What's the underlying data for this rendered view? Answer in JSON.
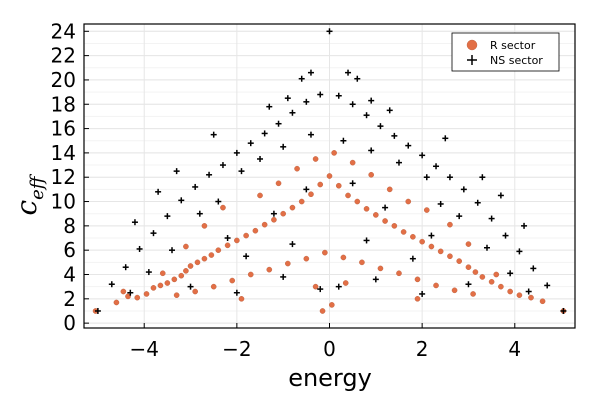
{
  "chart_data": {
    "type": "scatter",
    "xlabel": "energy",
    "ylabel": {
      "base": "c",
      "subscript": "eff"
    },
    "xlim": [
      -5.3,
      5.3
    ],
    "ylim": [
      -0.4,
      24.6
    ],
    "xticks": [
      -4,
      -2,
      0,
      2,
      4
    ],
    "xtick_labels": [
      "−4",
      "−2",
      "0",
      "2",
      "4"
    ],
    "yticks": [
      0,
      2,
      4,
      6,
      8,
      10,
      12,
      14,
      16,
      18,
      20,
      22,
      24
    ],
    "ytick_labels": [
      "0",
      "2",
      "4",
      "6",
      "8",
      "10",
      "12",
      "14",
      "16",
      "18",
      "20",
      "22",
      "24"
    ],
    "grid": true,
    "legend_position": "top-right",
    "series": [
      {
        "name": "R sector",
        "marker": "circle",
        "color": "#e26f46",
        "points": [
          [
            -5.05,
            1.0
          ],
          [
            -4.6,
            1.7
          ],
          [
            -4.35,
            2.2
          ],
          [
            -4.15,
            2.1
          ],
          [
            -4.45,
            2.6
          ],
          [
            -3.95,
            2.4
          ],
          [
            -3.8,
            2.9
          ],
          [
            -3.65,
            3.1
          ],
          [
            -3.5,
            3.3
          ],
          [
            -3.35,
            3.6
          ],
          [
            -3.2,
            3.9
          ],
          [
            -3.1,
            4.3
          ],
          [
            -3.0,
            4.7
          ],
          [
            -2.85,
            5.0
          ],
          [
            -2.7,
            5.3
          ],
          [
            -2.55,
            5.6
          ],
          [
            -2.4,
            6.0
          ],
          [
            -2.2,
            6.4
          ],
          [
            -2.0,
            6.8
          ],
          [
            -1.8,
            7.2
          ],
          [
            -1.6,
            7.6
          ],
          [
            -1.4,
            8.1
          ],
          [
            -1.2,
            8.5
          ],
          [
            -1.0,
            9.0
          ],
          [
            -0.8,
            9.5
          ],
          [
            -0.6,
            10.0
          ],
          [
            -0.4,
            10.6
          ],
          [
            -0.2,
            11.4
          ],
          [
            0.0,
            12.1
          ],
          [
            0.2,
            11.3
          ],
          [
            0.4,
            10.5
          ],
          [
            0.6,
            10.0
          ],
          [
            0.8,
            9.4
          ],
          [
            1.0,
            8.9
          ],
          [
            1.2,
            8.4
          ],
          [
            1.4,
            8.0
          ],
          [
            1.6,
            7.5
          ],
          [
            1.8,
            7.1
          ],
          [
            2.0,
            6.7
          ],
          [
            2.2,
            6.3
          ],
          [
            2.4,
            5.9
          ],
          [
            2.6,
            5.5
          ],
          [
            2.8,
            5.1
          ],
          [
            3.0,
            4.6
          ],
          [
            3.15,
            4.2
          ],
          [
            3.3,
            3.8
          ],
          [
            3.5,
            3.4
          ],
          [
            3.7,
            3.0
          ],
          [
            3.9,
            2.6
          ],
          [
            4.1,
            2.3
          ],
          [
            4.35,
            2.1
          ],
          [
            4.6,
            1.8
          ],
          [
            5.05,
            1.0
          ],
          [
            -3.3,
            2.3
          ],
          [
            -2.9,
            2.6
          ],
          [
            -2.5,
            3.0
          ],
          [
            -2.1,
            3.5
          ],
          [
            -1.7,
            4.0
          ],
          [
            -1.3,
            4.4
          ],
          [
            -0.9,
            4.9
          ],
          [
            -0.5,
            5.3
          ],
          [
            -0.1,
            5.8
          ],
          [
            0.3,
            5.4
          ],
          [
            0.7,
            5.0
          ],
          [
            1.1,
            4.5
          ],
          [
            1.5,
            4.1
          ],
          [
            1.9,
            3.6
          ],
          [
            2.3,
            3.1
          ],
          [
            2.7,
            2.7
          ],
          [
            3.1,
            2.4
          ],
          [
            -1.5,
            10.5
          ],
          [
            -1.1,
            11.5
          ],
          [
            -0.7,
            12.7
          ],
          [
            -0.3,
            13.5
          ],
          [
            0.1,
            14.0
          ],
          [
            0.5,
            13.2
          ],
          [
            0.9,
            12.2
          ],
          [
            1.3,
            11.0
          ],
          [
            1.7,
            10.0
          ],
          [
            -2.3,
            9.5
          ],
          [
            2.1,
            9.3
          ],
          [
            -2.7,
            8.0
          ],
          [
            2.6,
            8.1
          ],
          [
            -3.1,
            6.3
          ],
          [
            3.0,
            6.5
          ],
          [
            -0.15,
            1.0
          ],
          [
            0.05,
            1.5
          ],
          [
            -0.3,
            3.0
          ],
          [
            0.35,
            3.3
          ],
          [
            -1.9,
            2.0
          ],
          [
            1.9,
            2.0
          ],
          [
            -3.6,
            4.1
          ],
          [
            3.6,
            4.0
          ]
        ]
      },
      {
        "name": "NS sector",
        "marker": "cross",
        "color": "#000000",
        "points": [
          [
            -5.0,
            1.0
          ],
          [
            -4.7,
            3.2
          ],
          [
            -4.4,
            4.6
          ],
          [
            -4.1,
            6.1
          ],
          [
            -3.8,
            7.4
          ],
          [
            -3.5,
            8.8
          ],
          [
            -3.2,
            10.1
          ],
          [
            -2.9,
            11.2
          ],
          [
            -2.6,
            12.2
          ],
          [
            -2.3,
            13.0
          ],
          [
            -2.0,
            14.0
          ],
          [
            -1.7,
            14.8
          ],
          [
            -1.4,
            15.6
          ],
          [
            -1.1,
            16.4
          ],
          [
            -0.8,
            17.3
          ],
          [
            -0.5,
            18.2
          ],
          [
            -0.2,
            18.8
          ],
          [
            0.0,
            24.0
          ],
          [
            0.2,
            18.7
          ],
          [
            0.5,
            18.0
          ],
          [
            0.8,
            17.1
          ],
          [
            1.1,
            16.2
          ],
          [
            1.4,
            15.4
          ],
          [
            1.7,
            14.6
          ],
          [
            2.0,
            13.8
          ],
          [
            2.3,
            12.9
          ],
          [
            2.6,
            12.0
          ],
          [
            2.9,
            11.0
          ],
          [
            3.2,
            9.9
          ],
          [
            3.5,
            8.6
          ],
          [
            3.8,
            7.2
          ],
          [
            4.1,
            5.9
          ],
          [
            4.4,
            4.5
          ],
          [
            4.7,
            3.1
          ],
          [
            5.05,
            1.0
          ],
          [
            -0.6,
            20.1
          ],
          [
            -0.4,
            20.6
          ],
          [
            0.4,
            20.6
          ],
          [
            0.6,
            20.1
          ],
          [
            -1.9,
            12.5
          ],
          [
            -1.5,
            13.5
          ],
          [
            -1.0,
            14.5
          ],
          [
            -0.4,
            15.5
          ],
          [
            0.3,
            15.0
          ],
          [
            0.9,
            14.2
          ],
          [
            1.5,
            13.2
          ],
          [
            2.1,
            12.0
          ],
          [
            -2.8,
            9.0
          ],
          [
            -2.4,
            10.0
          ],
          [
            2.4,
            9.8
          ],
          [
            2.8,
            8.8
          ],
          [
            -3.4,
            6.0
          ],
          [
            3.4,
            6.2
          ],
          [
            -3.9,
            4.2
          ],
          [
            3.9,
            4.1
          ],
          [
            -4.3,
            2.5
          ],
          [
            4.3,
            2.6
          ],
          [
            -3.0,
            3.0
          ],
          [
            3.0,
            3.2
          ],
          [
            -2.0,
            2.5
          ],
          [
            2.0,
            2.4
          ],
          [
            -1.0,
            3.8
          ],
          [
            1.0,
            3.6
          ],
          [
            -0.2,
            2.8
          ],
          [
            0.2,
            3.0
          ],
          [
            -2.2,
            7.0
          ],
          [
            2.2,
            7.2
          ],
          [
            -1.2,
            9.0
          ],
          [
            1.2,
            9.5
          ],
          [
            -0.5,
            11.0
          ],
          [
            0.5,
            11.5
          ],
          [
            -1.8,
            5.5
          ],
          [
            1.8,
            5.3
          ],
          [
            -0.8,
            6.5
          ],
          [
            0.8,
            6.8
          ],
          [
            -1.3,
            17.8
          ],
          [
            1.3,
            17.5
          ],
          [
            -0.9,
            18.5
          ],
          [
            0.9,
            18.3
          ],
          [
            -2.5,
            15.5
          ],
          [
            2.5,
            15.2
          ],
          [
            -3.3,
            12.5
          ],
          [
            3.3,
            12.0
          ],
          [
            -3.7,
            10.8
          ],
          [
            3.7,
            10.5
          ],
          [
            -4.2,
            8.3
          ],
          [
            4.2,
            8.0
          ]
        ]
      }
    ]
  }
}
